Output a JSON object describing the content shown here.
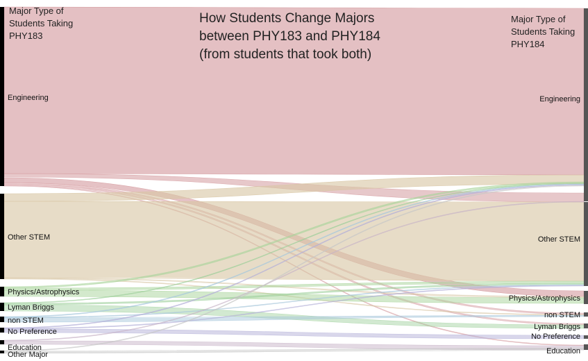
{
  "title": "How Students Change Majors\nbetween PHY183 and PHY184\n(from students that took both)",
  "left_header": "Major Type of\nStudents Taking\nPHY183",
  "right_header": "Major Type of\nStudents Taking\nPHY184",
  "colors": {
    "engineering": "#d49a9e",
    "other_stem": "#d8c6a4",
    "physics": "#a8d49a",
    "lyman_briggs": "#9ccf9a",
    "non_stem": "#a8c8dc",
    "no_preference": "#b4b0d8",
    "education": "#c8b4c8",
    "other_major": "#c8c8c8",
    "node_left": "#000000",
    "node_right": "#555555"
  },
  "left_nodes": [
    {
      "key": "engineering",
      "label": "Engineering"
    },
    {
      "key": "other_stem",
      "label": "Other STEM"
    },
    {
      "key": "physics",
      "label": "Physics/Astrophysics"
    },
    {
      "key": "lyman_briggs",
      "label": "Lyman Briggs"
    },
    {
      "key": "non_stem",
      "label": "non STEM"
    },
    {
      "key": "no_preference",
      "label": "No Preference"
    },
    {
      "key": "education",
      "label": "Education"
    },
    {
      "key": "other_major",
      "label": "Other Major"
    }
  ],
  "right_nodes": [
    {
      "key": "engineering",
      "label": "Engineering"
    },
    {
      "key": "other_stem",
      "label": "Other STEM"
    },
    {
      "key": "physics",
      "label": "Physics/Astrophysics"
    },
    {
      "key": "non_stem",
      "label": "non STEM"
    },
    {
      "key": "lyman_briggs",
      "label": "Lyman Briggs"
    },
    {
      "key": "no_preference",
      "label": "No Preference"
    },
    {
      "key": "education",
      "label": "Education"
    }
  ]
}
